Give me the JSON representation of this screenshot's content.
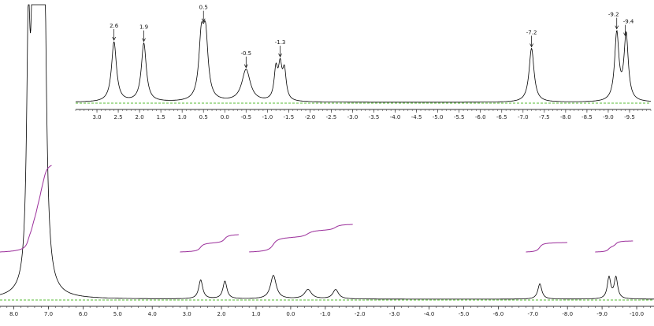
{
  "chart_data": [
    {
      "type": "line",
      "panel": "main-spectrum",
      "xlabel": "",
      "ylabel": "",
      "x_reversed": true,
      "xlim": [
        8.4,
        -10.5
      ],
      "x_ticks": [
        8.0,
        7.0,
        6.0,
        5.0,
        4.0,
        3.0,
        2.0,
        1.0,
        0.0,
        -1.0,
        -2.0,
        -3.0,
        -4.0,
        -5.0,
        -6.0,
        -7.0,
        -8.0,
        -9.0,
        -10.0
      ],
      "x_tick_labels": [
        "8.0",
        "7.0",
        "6.0",
        "5.0",
        "4.0",
        "3.0",
        "2.0",
        "1.0",
        "0.0",
        "-1.0",
        "-2.0",
        "-3.0",
        "-4.0",
        "-5.0",
        "-6.0",
        "-7.0",
        "-8.0",
        "-9.0",
        "-10.0"
      ],
      "peaks": [
        {
          "x": 7.58,
          "height": 1.0,
          "width": 0.06
        },
        {
          "x": 7.45,
          "height": 1.05,
          "width": 0.06
        },
        {
          "x": 7.33,
          "height": 1.12,
          "width": 0.06
        },
        {
          "x": 7.22,
          "height": 1.15,
          "width": 0.06
        },
        {
          "x": 7.12,
          "height": 1.2,
          "width": 0.07
        },
        {
          "x": 2.6,
          "height": 0.08,
          "width": 0.07
        },
        {
          "x": 1.9,
          "height": 0.075,
          "width": 0.07
        },
        {
          "x": 0.5,
          "height": 0.1,
          "width": 0.1
        },
        {
          "x": -0.5,
          "height": 0.04,
          "width": 0.12
        },
        {
          "x": -1.3,
          "height": 0.04,
          "width": 0.1
        },
        {
          "x": -7.2,
          "height": 0.065,
          "width": 0.07
        },
        {
          "x": -9.2,
          "height": 0.09,
          "width": 0.06
        },
        {
          "x": -9.4,
          "height": 0.09,
          "width": 0.06
        }
      ],
      "integrals": [
        {
          "from": 8.4,
          "to": 6.9
        },
        {
          "from": 3.2,
          "to": 1.5
        },
        {
          "from": 1.2,
          "to": -1.8
        },
        {
          "from": -6.8,
          "to": -8.0
        },
        {
          "from": -8.8,
          "to": -9.9
        }
      ]
    },
    {
      "type": "line",
      "panel": "inset-spectrum",
      "xlabel": "",
      "ylabel": "",
      "x_reversed": true,
      "xlim": [
        3.5,
        -10.0
      ],
      "x_ticks": [
        3.0,
        2.5,
        2.0,
        1.5,
        1.0,
        0.5,
        0.0,
        -0.5,
        -1.0,
        -1.5,
        -2.0,
        -2.5,
        -3.0,
        -3.5,
        -4.0,
        -4.5,
        -5.0,
        -5.5,
        -6.0,
        -6.5,
        -7.0,
        -7.5,
        -8.0,
        -8.5,
        -9.0,
        -9.5
      ],
      "x_tick_labels": [
        "3.0",
        "2.5",
        "2.0",
        "1.5",
        "1.0",
        "0.5",
        "0.0",
        "-0.5",
        "-1.0",
        "-1.5",
        "-2.0",
        "-2.5",
        "-3.0",
        "-3.5",
        "-4.0",
        "-4.5",
        "-5.0",
        "-5.5",
        "-6.0",
        "-6.5",
        "-7.0",
        "-7.5",
        "-8.0",
        "-8.5",
        "-9.0",
        "-9.5"
      ],
      "peak_labels": [
        {
          "x": 2.6,
          "text": "2.6"
        },
        {
          "x": 1.9,
          "text": "1.9"
        },
        {
          "x": 0.5,
          "text": "0.5"
        },
        {
          "x": -0.5,
          "text": "-0.5"
        },
        {
          "x": -1.3,
          "text": "-1.3"
        },
        {
          "x": -7.2,
          "text": "-7.2"
        },
        {
          "x": -9.2,
          "text": "-9.2"
        },
        {
          "x": -9.4,
          "text": "-9.4"
        }
      ],
      "peaks": [
        {
          "x": 2.6,
          "height": 0.8,
          "width": 0.07
        },
        {
          "x": 1.9,
          "height": 0.78,
          "width": 0.07
        },
        {
          "x": 0.55,
          "height": 0.78,
          "width": 0.07
        },
        {
          "x": 0.45,
          "height": 0.8,
          "width": 0.07
        },
        {
          "x": -0.5,
          "height": 0.43,
          "width": 0.12
        },
        {
          "x": -1.2,
          "height": 0.4,
          "width": 0.05
        },
        {
          "x": -1.3,
          "height": 0.42,
          "width": 0.05
        },
        {
          "x": -1.4,
          "height": 0.38,
          "width": 0.05
        },
        {
          "x": -7.2,
          "height": 0.72,
          "width": 0.07
        },
        {
          "x": -9.2,
          "height": 0.9,
          "width": 0.06
        },
        {
          "x": -9.42,
          "height": 0.88,
          "width": 0.06
        }
      ]
    }
  ],
  "colors": {
    "spectrum": "#000000",
    "integral": "#9b2f9b",
    "baseline": "#55bb33",
    "axis": "#333333"
  }
}
